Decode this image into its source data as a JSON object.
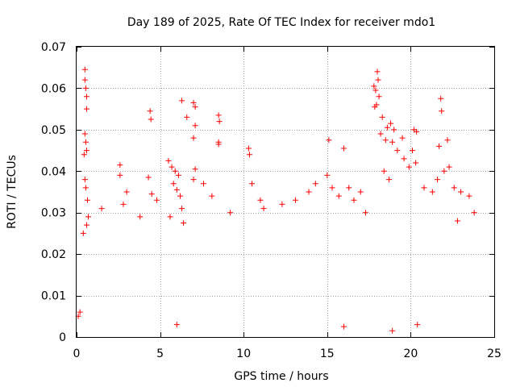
{
  "chart_data": {
    "type": "scatter",
    "title": "Day 189 of 2025, Rate Of TEC Index for receiver mdo1",
    "xlabel": "GPS time / hours",
    "ylabel": "ROTI / TECUs",
    "xlim": [
      0,
      25
    ],
    "ylim": [
      0,
      0.07
    ],
    "xticks": [
      0,
      5,
      10,
      15,
      20,
      25
    ],
    "yticks": [
      0,
      0.01,
      0.02,
      0.03,
      0.04,
      0.05,
      0.06,
      0.07
    ],
    "xtick_labels": [
      "0",
      "5",
      "10",
      "15",
      "20",
      "25"
    ],
    "ytick_labels": [
      "0",
      "0.01",
      "0.02",
      "0.03",
      "0.04",
      "0.05",
      "0.06",
      "0.07"
    ],
    "grid": true,
    "marker": "+",
    "point_color": "#ff0000",
    "series": [
      {
        "name": "ROTI",
        "points": [
          [
            0.5,
            0.0645
          ],
          [
            0.5,
            0.062
          ],
          [
            0.55,
            0.06
          ],
          [
            0.6,
            0.058
          ],
          [
            0.6,
            0.055
          ],
          [
            0.5,
            0.049
          ],
          [
            0.55,
            0.047
          ],
          [
            0.6,
            0.045
          ],
          [
            0.45,
            0.044
          ],
          [
            0.5,
            0.038
          ],
          [
            0.55,
            0.036
          ],
          [
            0.65,
            0.033
          ],
          [
            0.7,
            0.029
          ],
          [
            0.6,
            0.027
          ],
          [
            0.4,
            0.025
          ],
          [
            4.4,
            0.0545
          ],
          [
            4.45,
            0.0525
          ],
          [
            4.3,
            0.0385
          ],
          [
            4.5,
            0.0345
          ],
          [
            5.5,
            0.0425
          ],
          [
            5.7,
            0.041
          ],
          [
            5.9,
            0.04
          ],
          [
            6.1,
            0.039
          ],
          [
            5.8,
            0.037
          ],
          [
            6.0,
            0.0355
          ],
          [
            6.2,
            0.034
          ],
          [
            6.3,
            0.031
          ],
          [
            5.6,
            0.029
          ],
          [
            6.4,
            0.0275
          ],
          [
            6.3,
            0.057
          ],
          [
            6.6,
            0.053
          ],
          [
            7.0,
            0.0565
          ],
          [
            7.1,
            0.0555
          ],
          [
            7.1,
            0.051
          ],
          [
            7.0,
            0.048
          ],
          [
            7.1,
            0.0405
          ],
          [
            7.0,
            0.038
          ],
          [
            8.5,
            0.0535
          ],
          [
            8.55,
            0.052
          ],
          [
            8.5,
            0.047
          ],
          [
            8.5,
            0.0465
          ],
          [
            10.3,
            0.0455
          ],
          [
            10.35,
            0.044
          ],
          [
            10.5,
            0.037
          ],
          [
            11.0,
            0.033
          ],
          [
            11.2,
            0.031
          ],
          [
            2.6,
            0.0415
          ],
          [
            2.6,
            0.039
          ],
          [
            2.8,
            0.032
          ],
          [
            3.0,
            0.035
          ],
          [
            1.5,
            0.031
          ],
          [
            3.8,
            0.029
          ],
          [
            4.8,
            0.033
          ],
          [
            7.6,
            0.037
          ],
          [
            8.1,
            0.034
          ],
          [
            9.2,
            0.03
          ],
          [
            12.3,
            0.032
          ],
          [
            13.1,
            0.033
          ],
          [
            13.9,
            0.035
          ],
          [
            14.3,
            0.037
          ],
          [
            15.0,
            0.039
          ],
          [
            15.1,
            0.0475
          ],
          [
            15.3,
            0.036
          ],
          [
            15.7,
            0.034
          ],
          [
            16.0,
            0.0455
          ],
          [
            16.3,
            0.036
          ],
          [
            16.6,
            0.033
          ],
          [
            17.0,
            0.035
          ],
          [
            17.3,
            0.03
          ],
          [
            17.8,
            0.0605
          ],
          [
            18.0,
            0.064
          ],
          [
            18.05,
            0.062
          ],
          [
            17.9,
            0.0595
          ],
          [
            18.1,
            0.058
          ],
          [
            17.95,
            0.056
          ],
          [
            17.85,
            0.0555
          ],
          [
            18.3,
            0.053
          ],
          [
            18.6,
            0.0505
          ],
          [
            18.8,
            0.0515
          ],
          [
            19.0,
            0.05
          ],
          [
            18.2,
            0.049
          ],
          [
            18.5,
            0.0475
          ],
          [
            18.9,
            0.047
          ],
          [
            19.2,
            0.045
          ],
          [
            19.6,
            0.043
          ],
          [
            19.5,
            0.048
          ],
          [
            20.2,
            0.05
          ],
          [
            20.35,
            0.0495
          ],
          [
            20.1,
            0.045
          ],
          [
            20.3,
            0.042
          ],
          [
            19.9,
            0.041
          ],
          [
            18.4,
            0.04
          ],
          [
            18.7,
            0.038
          ],
          [
            21.8,
            0.0575
          ],
          [
            21.85,
            0.0545
          ],
          [
            21.7,
            0.046
          ],
          [
            22.2,
            0.0475
          ],
          [
            22.3,
            0.041
          ],
          [
            22.0,
            0.04
          ],
          [
            21.6,
            0.038
          ],
          [
            22.6,
            0.036
          ],
          [
            23.0,
            0.035
          ],
          [
            23.5,
            0.034
          ],
          [
            21.3,
            0.035
          ],
          [
            20.8,
            0.036
          ],
          [
            23.8,
            0.03
          ],
          [
            22.8,
            0.028
          ],
          [
            18.9,
            0.0015
          ],
          [
            16.0,
            0.0025
          ],
          [
            20.4,
            0.003
          ],
          [
            6.0,
            0.003
          ],
          [
            0.1,
            0.005
          ],
          [
            0.2,
            0.006
          ]
        ]
      }
    ]
  }
}
